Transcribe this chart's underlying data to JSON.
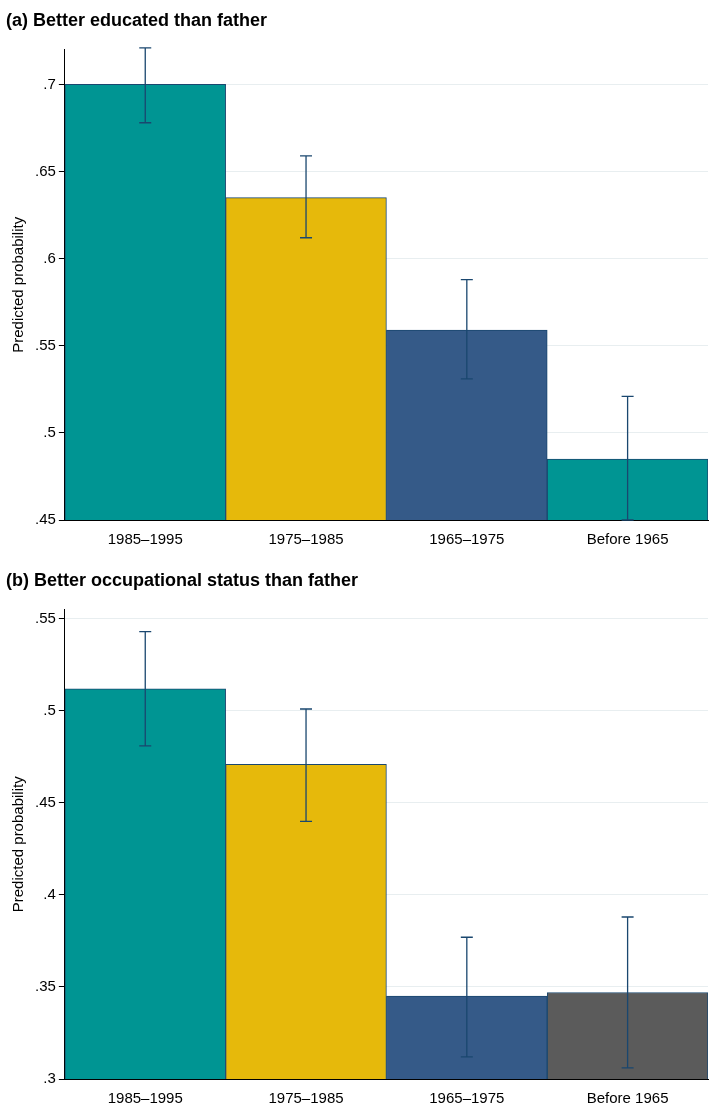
{
  "chart_data": [
    {
      "type": "bar",
      "title": "(a) Better educated than father",
      "ylabel": "Predicted probability",
      "categories": [
        "1985–1995",
        "1975–1985",
        "1965–1975",
        "Before 1965"
      ],
      "values": [
        0.7,
        0.635,
        0.559,
        0.485
      ],
      "colors": [
        "#009593",
        "#e6b90b",
        "#355a88",
        "#009593"
      ],
      "errors": [
        [
          0.678,
          0.721
        ],
        [
          0.612,
          0.659
        ],
        [
          0.531,
          0.588
        ],
        [
          0.45,
          0.521
        ]
      ],
      "ylim": [
        0.45,
        0.72
      ],
      "yticks": [
        {
          "value": 0.45,
          "label": ".45"
        },
        {
          "value": 0.5,
          "label": ".5"
        },
        {
          "value": 0.55,
          "label": ".55"
        },
        {
          "value": 0.6,
          "label": ".6"
        },
        {
          "value": 0.65,
          "label": ".65"
        },
        {
          "value": 0.7,
          "label": ".7"
        }
      ],
      "grid": "y",
      "legend": false
    },
    {
      "type": "bar",
      "title": "(b) Better occupational status than father",
      "ylabel": "Predicted probability",
      "categories": [
        "1985–1995",
        "1975–1985",
        "1965–1975",
        "Before 1965"
      ],
      "values": [
        0.512,
        0.471,
        0.345,
        0.347
      ],
      "colors": [
        "#009593",
        "#e6b90b",
        "#355a88",
        "#5b5b5b"
      ],
      "errors": [
        [
          0.481,
          0.543
        ],
        [
          0.44,
          0.501
        ],
        [
          0.312,
          0.377
        ],
        [
          0.306,
          0.388
        ]
      ],
      "ylim": [
        0.3,
        0.555
      ],
      "yticks": [
        {
          "value": 0.3,
          "label": ".3"
        },
        {
          "value": 0.35,
          "label": ".35"
        },
        {
          "value": 0.4,
          "label": ".4"
        },
        {
          "value": 0.45,
          "label": ".45"
        },
        {
          "value": 0.5,
          "label": ".5"
        },
        {
          "value": 0.55,
          "label": ".55"
        }
      ],
      "grid": "y",
      "legend": false
    }
  ]
}
